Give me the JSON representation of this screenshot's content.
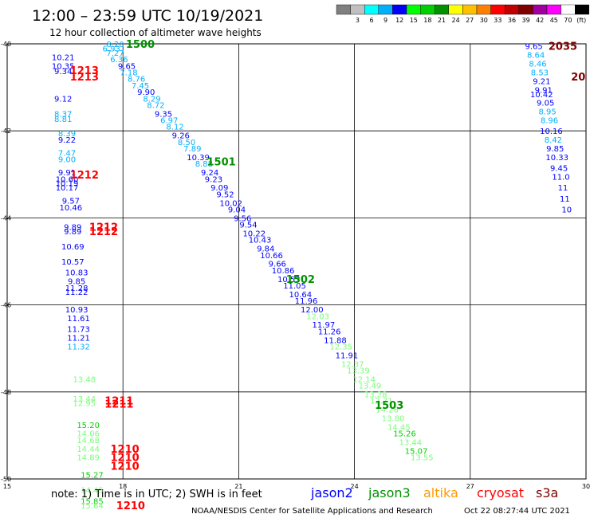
{
  "title": "12:00 – 23:59 UTC 10/19/2021",
  "subtitle": "12 hour collection of altimeter wave heights",
  "note": "note: 1) Time is in UTC; 2) SWH is in feet",
  "credit": "NOAA/NESDIS Center for Satellite Applications and Research",
  "timestamp": "Oct 22 08:27:44 UTC 2021",
  "color_scale": {
    "unit": "(ft)",
    "stops": [
      {
        "label": "",
        "color": "#808080"
      },
      {
        "label": "3",
        "color": "#c0c0c0"
      },
      {
        "label": "6",
        "color": "#00ffff"
      },
      {
        "label": "9",
        "color": "#00b0ff"
      },
      {
        "label": "12",
        "color": "#0000ff"
      },
      {
        "label": "15",
        "color": "#00ff00"
      },
      {
        "label": "18",
        "color": "#00d000"
      },
      {
        "label": "21",
        "color": "#009000"
      },
      {
        "label": "24",
        "color": "#ffff00"
      },
      {
        "label": "27",
        "color": "#ffc000"
      },
      {
        "label": "30",
        "color": "#ff8000"
      },
      {
        "label": "33",
        "color": "#ff0000"
      },
      {
        "label": "36",
        "color": "#c00000"
      },
      {
        "label": "39",
        "color": "#800000"
      },
      {
        "label": "42",
        "color": "#a000a0"
      },
      {
        "label": "45",
        "color": "#ff00ff"
      },
      {
        "label": "70",
        "color": "#ffffff"
      },
      {
        "label": "",
        "color": "#000000"
      }
    ]
  },
  "satellites": [
    {
      "name": "jason2",
      "color": "#0000ff"
    },
    {
      "name": "jason3",
      "color": "#009000"
    },
    {
      "name": "altika",
      "color": "#ff9900"
    },
    {
      "name": "cryosat",
      "color": "#ff0000"
    },
    {
      "name": "s3a",
      "color": "#800000"
    }
  ],
  "chart_data": {
    "type": "scatter",
    "xlim": [
      15,
      30
    ],
    "ylim": [
      -50,
      -40
    ],
    "x_ticks": [
      "15",
      "18",
      "21",
      "24",
      "27",
      "30"
    ],
    "y_ticks": [
      "-40",
      "-42",
      "-44",
      "-46",
      "-48",
      "-50"
    ],
    "pass_labels": [
      {
        "text": "1500",
        "x": 18.45,
        "y": -40.0,
        "color": "#009000"
      },
      {
        "text": "1501",
        "x": 20.55,
        "y": -42.7,
        "color": "#009000"
      },
      {
        "text": "1502",
        "x": 22.6,
        "y": -45.4,
        "color": "#009000"
      },
      {
        "text": "1503",
        "x": 24.9,
        "y": -48.3,
        "color": "#009000"
      },
      {
        "text": "1213",
        "x": 17.0,
        "y": -40.6,
        "color": "#ff0000"
      },
      {
        "text": "1213",
        "x": 17.0,
        "y": -40.75,
        "color": "#ff0000"
      },
      {
        "text": "1212",
        "x": 17.0,
        "y": -43.0,
        "color": "#ff0000"
      },
      {
        "text": "1212",
        "x": 17.5,
        "y": -44.2,
        "color": "#ff0000"
      },
      {
        "text": "1212",
        "x": 17.5,
        "y": -44.3,
        "color": "#ff0000"
      },
      {
        "text": "1211",
        "x": 17.9,
        "y": -48.2,
        "color": "#ff0000"
      },
      {
        "text": "1211",
        "x": 17.9,
        "y": -48.27,
        "color": "#ff0000"
      },
      {
        "text": "1210",
        "x": 18.05,
        "y": -49.3,
        "color": "#ff0000"
      },
      {
        "text": "1210",
        "x": 18.05,
        "y": -49.5,
        "color": "#ff0000"
      },
      {
        "text": "1210",
        "x": 18.05,
        "y": -49.7,
        "color": "#ff0000"
      },
      {
        "text": "1210",
        "x": 18.2,
        "y": -50.6,
        "color": "#ff0000"
      },
      {
        "text": "2035",
        "x": 29.4,
        "y": -40.05,
        "color": "#800000"
      },
      {
        "text": "20",
        "x": 29.8,
        "y": -40.75,
        "color": "#800000"
      }
    ],
    "points": [
      {
        "x": 17.8,
        "y": -40.0,
        "v": "8.20",
        "color": "#00b0ff"
      },
      {
        "x": 17.7,
        "y": -40.1,
        "v": "6.93",
        "color": "#00b0ff"
      },
      {
        "x": 17.8,
        "y": -40.2,
        "v": "7.27",
        "color": "#00b0ff"
      },
      {
        "x": 17.9,
        "y": -40.35,
        "v": "6.36",
        "color": "#00b0ff"
      },
      {
        "x": 18.1,
        "y": -40.5,
        "v": "9.65",
        "color": "#0000ff"
      },
      {
        "x": 18.15,
        "y": -40.65,
        "v": "7.18",
        "color": "#00b0ff"
      },
      {
        "x": 18.35,
        "y": -40.8,
        "v": "8.76",
        "color": "#00b0ff"
      },
      {
        "x": 18.45,
        "y": -40.95,
        "v": "7.45",
        "color": "#00b0ff"
      },
      {
        "x": 18.6,
        "y": -41.1,
        "v": "9.90",
        "color": "#0000ff"
      },
      {
        "x": 18.75,
        "y": -41.25,
        "v": "8.29",
        "color": "#00b0ff"
      },
      {
        "x": 18.85,
        "y": -41.4,
        "v": "8.72",
        "color": "#00b0ff"
      },
      {
        "x": 19.05,
        "y": -41.6,
        "v": "9.35",
        "color": "#0000ff"
      },
      {
        "x": 19.2,
        "y": -41.75,
        "v": "6.97",
        "color": "#00b0ff"
      },
      {
        "x": 19.35,
        "y": -41.9,
        "v": "8.12",
        "color": "#00b0ff"
      },
      {
        "x": 19.5,
        "y": -42.1,
        "v": "9.26",
        "color": "#0000ff"
      },
      {
        "x": 19.65,
        "y": -42.25,
        "v": "8.50",
        "color": "#00b0ff"
      },
      {
        "x": 19.8,
        "y": -42.4,
        "v": "7.89",
        "color": "#00b0ff"
      },
      {
        "x": 19.95,
        "y": -42.6,
        "v": "10.39",
        "color": "#0000ff"
      },
      {
        "x": 20.1,
        "y": -42.75,
        "v": "8.88",
        "color": "#00b0ff"
      },
      {
        "x": 20.25,
        "y": -42.95,
        "v": "9.24",
        "color": "#0000ff"
      },
      {
        "x": 20.35,
        "y": -43.1,
        "v": "9.23",
        "color": "#0000ff"
      },
      {
        "x": 20.5,
        "y": -43.3,
        "v": "9.09",
        "color": "#0000ff"
      },
      {
        "x": 20.65,
        "y": -43.45,
        "v": "9.52",
        "color": "#0000ff"
      },
      {
        "x": 20.8,
        "y": -43.65,
        "v": "10.02",
        "color": "#0000ff"
      },
      {
        "x": 20.95,
        "y": -43.8,
        "v": "9.04",
        "color": "#0000ff"
      },
      {
        "x": 21.1,
        "y": -44.0,
        "v": "9.56",
        "color": "#0000ff"
      },
      {
        "x": 21.25,
        "y": -44.15,
        "v": "9.54",
        "color": "#0000ff"
      },
      {
        "x": 21.4,
        "y": -44.35,
        "v": "10.22",
        "color": "#0000ff"
      },
      {
        "x": 21.55,
        "y": -44.5,
        "v": "10.43",
        "color": "#0000ff"
      },
      {
        "x": 21.7,
        "y": -44.7,
        "v": "9.84",
        "color": "#0000ff"
      },
      {
        "x": 21.85,
        "y": -44.85,
        "v": "10.66",
        "color": "#0000ff"
      },
      {
        "x": 22.0,
        "y": -45.05,
        "v": "9.66",
        "color": "#0000ff"
      },
      {
        "x": 22.15,
        "y": -45.2,
        "v": "10.86",
        "color": "#0000ff"
      },
      {
        "x": 22.3,
        "y": -45.4,
        "v": "10.53",
        "color": "#0000ff"
      },
      {
        "x": 22.45,
        "y": -45.55,
        "v": "11.05",
        "color": "#0000ff"
      },
      {
        "x": 22.6,
        "y": -45.75,
        "v": "10.64",
        "color": "#0000ff"
      },
      {
        "x": 22.75,
        "y": -45.9,
        "v": "11.96",
        "color": "#0000ff"
      },
      {
        "x": 22.9,
        "y": -46.1,
        "v": "12.00",
        "color": "#0000ff"
      },
      {
        "x": 23.05,
        "y": -46.25,
        "v": "12.03",
        "color": "#7cfc7c"
      },
      {
        "x": 23.2,
        "y": -46.45,
        "v": "11.97",
        "color": "#0000ff"
      },
      {
        "x": 23.35,
        "y": -46.6,
        "v": "11.26",
        "color": "#0000ff"
      },
      {
        "x": 23.5,
        "y": -46.8,
        "v": "11.88",
        "color": "#0000ff"
      },
      {
        "x": 23.65,
        "y": -46.95,
        "v": "12.35",
        "color": "#7cfc7c"
      },
      {
        "x": 23.8,
        "y": -47.15,
        "v": "11.91",
        "color": "#0000ff"
      },
      {
        "x": 23.95,
        "y": -47.35,
        "v": "12.37",
        "color": "#7cfc7c"
      },
      {
        "x": 24.1,
        "y": -47.5,
        "v": "13.39",
        "color": "#7cfc7c"
      },
      {
        "x": 24.25,
        "y": -47.7,
        "v": "12.14",
        "color": "#7cfc7c"
      },
      {
        "x": 24.4,
        "y": -47.85,
        "v": "13.49",
        "color": "#7cfc7c"
      },
      {
        "x": 24.55,
        "y": -48.05,
        "v": "13.28",
        "color": "#7cfc7c"
      },
      {
        "x": 24.7,
        "y": -48.2,
        "v": "12.71",
        "color": "#7cfc7c"
      },
      {
        "x": 24.85,
        "y": -48.4,
        "v": "14.28",
        "color": "#7cfc7c"
      },
      {
        "x": 25.0,
        "y": -48.6,
        "v": "13.80",
        "color": "#7cfc7c"
      },
      {
        "x": 25.15,
        "y": -48.8,
        "v": "14.45",
        "color": "#7cfc7c"
      },
      {
        "x": 25.3,
        "y": -48.95,
        "v": "15.26",
        "color": "#00d000"
      },
      {
        "x": 25.45,
        "y": -49.15,
        "v": "13.44",
        "color": "#7cfc7c"
      },
      {
        "x": 25.6,
        "y": -49.35,
        "v": "15.07",
        "color": "#00d000"
      },
      {
        "x": 25.75,
        "y": -49.5,
        "v": "13.55",
        "color": "#7cfc7c"
      },
      {
        "x": 16.45,
        "y": -40.3,
        "v": "10.21",
        "color": "#0000ff"
      },
      {
        "x": 16.45,
        "y": -40.5,
        "v": "10.35",
        "color": "#0000ff"
      },
      {
        "x": 16.45,
        "y": -40.62,
        "v": "9.34",
        "color": "#0000ff"
      },
      {
        "x": 16.45,
        "y": -41.25,
        "v": "9.12",
        "color": "#0000ff"
      },
      {
        "x": 16.45,
        "y": -41.6,
        "v": "8.37",
        "color": "#00b0ff"
      },
      {
        "x": 16.45,
        "y": -41.72,
        "v": "8.81",
        "color": "#00b0ff"
      },
      {
        "x": 16.55,
        "y": -42.05,
        "v": "8.39",
        "color": "#00b0ff"
      },
      {
        "x": 16.55,
        "y": -42.2,
        "v": "9.22",
        "color": "#0000ff"
      },
      {
        "x": 16.55,
        "y": -42.5,
        "v": "7.47",
        "color": "#00b0ff"
      },
      {
        "x": 16.55,
        "y": -42.65,
        "v": "9.00",
        "color": "#00b0ff"
      },
      {
        "x": 16.55,
        "y": -42.95,
        "v": "9.91",
        "color": "#0000ff"
      },
      {
        "x": 16.55,
        "y": -43.1,
        "v": "10.60",
        "color": "#0000ff"
      },
      {
        "x": 16.55,
        "y": -43.2,
        "v": "10.19",
        "color": "#0000ff"
      },
      {
        "x": 16.55,
        "y": -43.3,
        "v": "10.17",
        "color": "#0000ff"
      },
      {
        "x": 16.65,
        "y": -43.6,
        "v": "9.57",
        "color": "#0000ff"
      },
      {
        "x": 16.65,
        "y": -43.75,
        "v": "10.46",
        "color": "#0000ff"
      },
      {
        "x": 16.7,
        "y": -44.2,
        "v": "9.89",
        "color": "#0000ff"
      },
      {
        "x": 16.7,
        "y": -44.3,
        "v": "9.89",
        "color": "#0000ff"
      },
      {
        "x": 16.7,
        "y": -44.65,
        "v": "10.69",
        "color": "#0000ff"
      },
      {
        "x": 16.7,
        "y": -45.0,
        "v": "10.57",
        "color": "#0000ff"
      },
      {
        "x": 16.8,
        "y": -45.25,
        "v": "10.83",
        "color": "#0000ff"
      },
      {
        "x": 16.8,
        "y": -45.45,
        "v": "9.85",
        "color": "#0000ff"
      },
      {
        "x": 16.8,
        "y": -45.6,
        "v": "11.28",
        "color": "#0000ff"
      },
      {
        "x": 16.8,
        "y": -45.7,
        "v": "11.22",
        "color": "#0000ff"
      },
      {
        "x": 16.8,
        "y": -46.1,
        "v": "10.93",
        "color": "#0000ff"
      },
      {
        "x": 16.85,
        "y": -46.3,
        "v": "11.61",
        "color": "#0000ff"
      },
      {
        "x": 16.85,
        "y": -46.55,
        "v": "11.73",
        "color": "#0000ff"
      },
      {
        "x": 16.85,
        "y": -46.75,
        "v": "11.21",
        "color": "#0000ff"
      },
      {
        "x": 16.85,
        "y": -46.95,
        "v": "11.32",
        "color": "#00b0ff"
      },
      {
        "x": 17.0,
        "y": -47.7,
        "v": "13.48",
        "color": "#7cfc7c"
      },
      {
        "x": 17.0,
        "y": -48.15,
        "v": "13.44",
        "color": "#7cfc7c"
      },
      {
        "x": 17.0,
        "y": -48.25,
        "v": "12.95",
        "color": "#7cfc7c"
      },
      {
        "x": 17.1,
        "y": -48.75,
        "v": "15.20",
        "color": "#00d000"
      },
      {
        "x": 17.1,
        "y": -48.95,
        "v": "14.06",
        "color": "#7cfc7c"
      },
      {
        "x": 17.1,
        "y": -49.1,
        "v": "14.68",
        "color": "#7cfc7c"
      },
      {
        "x": 17.1,
        "y": -49.3,
        "v": "14.44",
        "color": "#7cfc7c"
      },
      {
        "x": 17.1,
        "y": -49.5,
        "v": "14.89",
        "color": "#7cfc7c"
      },
      {
        "x": 17.2,
        "y": -49.9,
        "v": "15.27",
        "color": "#00d000"
      },
      {
        "x": 17.2,
        "y": -50.25,
        "v": "14.45",
        "color": "#7cfc7c"
      },
      {
        "x": 17.2,
        "y": -50.5,
        "v": "15.85",
        "color": "#00d000"
      },
      {
        "x": 17.2,
        "y": -50.6,
        "v": "15.64",
        "color": "#7cfc7c"
      },
      {
        "x": 28.65,
        "y": -40.05,
        "v": "9.65",
        "color": "#0000ff"
      },
      {
        "x": 28.7,
        "y": -40.25,
        "v": "8.64",
        "color": "#00b0ff"
      },
      {
        "x": 28.75,
        "y": -40.45,
        "v": "8.46",
        "color": "#00b0ff"
      },
      {
        "x": 28.8,
        "y": -40.65,
        "v": "8.53",
        "color": "#00b0ff"
      },
      {
        "x": 28.85,
        "y": -40.85,
        "v": "9.21",
        "color": "#0000ff"
      },
      {
        "x": 28.9,
        "y": -41.05,
        "v": "9.91",
        "color": "#0000ff"
      },
      {
        "x": 28.85,
        "y": -41.15,
        "v": "10.42",
        "color": "#0000ff"
      },
      {
        "x": 28.95,
        "y": -41.35,
        "v": "9.05",
        "color": "#0000ff"
      },
      {
        "x": 29.0,
        "y": -41.55,
        "v": "8.95",
        "color": "#00b0ff"
      },
      {
        "x": 29.05,
        "y": -41.75,
        "v": "8.96",
        "color": "#00b0ff"
      },
      {
        "x": 29.1,
        "y": -42.0,
        "v": "10.16",
        "color": "#0000ff"
      },
      {
        "x": 29.15,
        "y": -42.2,
        "v": "8.42",
        "color": "#00b0ff"
      },
      {
        "x": 29.2,
        "y": -42.4,
        "v": "9.85",
        "color": "#0000ff"
      },
      {
        "x": 29.25,
        "y": -42.6,
        "v": "10.33",
        "color": "#0000ff"
      },
      {
        "x": 29.3,
        "y": -42.85,
        "v": "9.45",
        "color": "#0000ff"
      },
      {
        "x": 29.35,
        "y": -43.05,
        "v": "11.0",
        "color": "#0000ff"
      },
      {
        "x": 29.4,
        "y": -43.3,
        "v": "11",
        "color": "#0000ff"
      },
      {
        "x": 29.45,
        "y": -43.55,
        "v": "11",
        "color": "#0000ff"
      },
      {
        "x": 29.5,
        "y": -43.8,
        "v": "10",
        "color": "#0000ff"
      }
    ]
  }
}
